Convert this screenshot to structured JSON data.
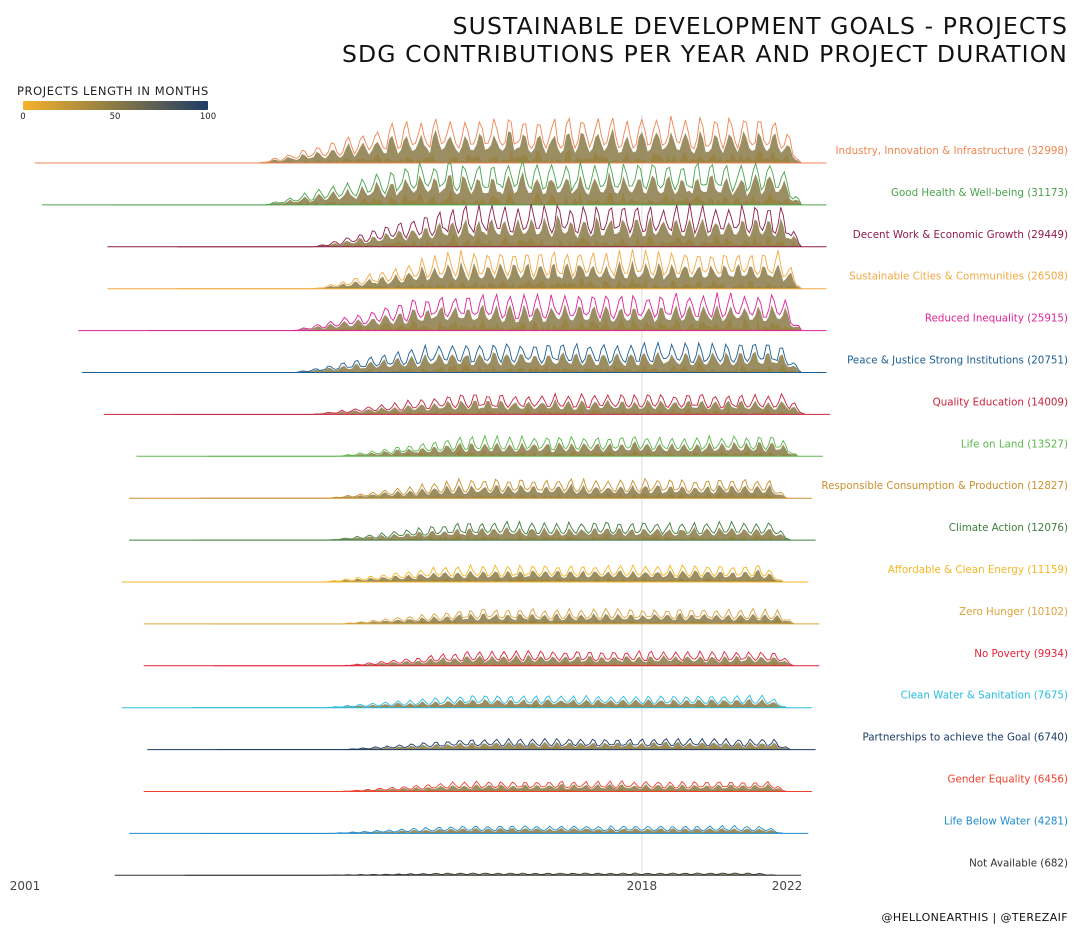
{
  "title_lines": [
    "SUSTAINABLE DEVELOPMENT GOALS - PROJECTS",
    "SDG CONTRIBUTIONS PER YEAR AND PROJECT DURATION"
  ],
  "legend": {
    "title": "PROJECTS LENGTH IN MONTHS",
    "ticks": [
      0,
      50,
      100
    ],
    "colors": [
      "#f5b12a",
      "#8a7a47",
      "#1f3c66"
    ]
  },
  "credit": "@HELLONEARTHIS | @TEREZAIF",
  "colors": {
    "Industry, Innovation & Infrastructure": "#f08550",
    "Good Health & Well-being": "#4aa34d",
    "Decent Work & Economic Growth": "#8f1d4b",
    "Sustainable Cities & Communities": "#f5a843",
    "Reduced Inequality": "#e0239a",
    "Peace & Justice Strong Institutions": "#1d5f94",
    "Quality Education": "#c8233c",
    "Life on Land": "#5ab94a",
    "Responsible Consumption & Production": "#c9902e",
    "Climate Action": "#3f7d3f",
    "Affordable & Clean Energy": "#f6b623",
    "Zero Hunger": "#dca33b",
    "No Poverty": "#e5243b",
    "Clean Water & Sanitation": "#28bde2",
    "Partnerships to achieve the Goal": "#1a3b67",
    "Gender Equality": "#ef402b",
    "Life Below Water": "#1f8bcb",
    "Not Available": "#333333"
  },
  "chart_data": {
    "type": "ridgeline",
    "title": "SUSTAINABLE DEVELOPMENT GOALS - PROJECTS / SDG CONTRIBUTIONS PER YEAR AND PROJECT DURATION",
    "x_axis": {
      "min": 2001,
      "max": 2022,
      "ticks": [
        2001,
        2018,
        2022
      ],
      "reference_line": 2018
    },
    "fill_scale": {
      "label": "PROJECTS LENGTH IN MONTHS",
      "min": 0,
      "max": 100
    },
    "series": [
      {
        "name": "Industry, Innovation & Infrastructure",
        "count": 32998,
        "start": 2003.2,
        "end": 2022.4,
        "amp": 1.0
      },
      {
        "name": "Good Health & Well-being",
        "count": 31173,
        "start": 2003.4,
        "end": 2022.4,
        "amp": 0.96
      },
      {
        "name": "Decent Work & Economic Growth",
        "count": 29449,
        "start": 2005.2,
        "end": 2022.4,
        "amp": 0.92
      },
      {
        "name": "Sustainable Cities & Communities",
        "count": 26508,
        "start": 2005.2,
        "end": 2022.4,
        "amp": 0.84
      },
      {
        "name": "Reduced Inequality",
        "count": 25915,
        "start": 2004.4,
        "end": 2022.4,
        "amp": 0.82
      },
      {
        "name": "Peace & Justice Strong Institutions",
        "count": 20751,
        "start": 2004.5,
        "end": 2022.4,
        "amp": 0.66
      },
      {
        "name": "Quality Education",
        "count": 14009,
        "start": 2005.1,
        "end": 2022.5,
        "amp": 0.45
      },
      {
        "name": "Life on Land",
        "count": 13527,
        "start": 2006.0,
        "end": 2022.3,
        "amp": 0.44
      },
      {
        "name": "Responsible Consumption & Production",
        "count": 12827,
        "start": 2005.8,
        "end": 2022.0,
        "amp": 0.42
      },
      {
        "name": "Climate Action",
        "count": 12076,
        "start": 2005.8,
        "end": 2022.1,
        "amp": 0.4
      },
      {
        "name": "Affordable & Clean Energy",
        "count": 11159,
        "start": 2005.6,
        "end": 2021.9,
        "amp": 0.37
      },
      {
        "name": "Zero Hunger",
        "count": 10102,
        "start": 2006.2,
        "end": 2022.2,
        "amp": 0.33
      },
      {
        "name": "No Poverty",
        "count": 9934,
        "start": 2006.2,
        "end": 2022.2,
        "amp": 0.33
      },
      {
        "name": "Clean Water & Sanitation",
        "count": 7675,
        "start": 2005.6,
        "end": 2022.0,
        "amp": 0.27
      },
      {
        "name": "Partnerships to achieve the Goal",
        "count": 6740,
        "start": 2006.3,
        "end": 2022.1,
        "amp": 0.24
      },
      {
        "name": "Gender Equality",
        "count": 6456,
        "start": 2006.2,
        "end": 2022.0,
        "amp": 0.23
      },
      {
        "name": "Life Below Water",
        "count": 4281,
        "start": 2005.8,
        "end": 2021.9,
        "amp": 0.17
      },
      {
        "name": "Not Available",
        "count": 682,
        "start": 2005.4,
        "end": 2021.7,
        "amp": 0.05
      }
    ]
  }
}
